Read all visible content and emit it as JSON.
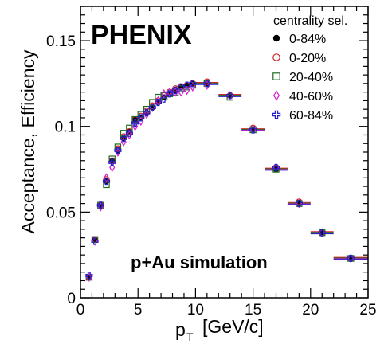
{
  "chart_data": {
    "type": "scatter",
    "title_text": "PHENIX",
    "annotation": "p+Au simulation",
    "xlabel_main": "p",
    "xlabel_sub": "T",
    "xlabel_unit": "[GeV/c]",
    "ylabel": "Acceptance, Efficiency",
    "xlim": [
      0,
      25
    ],
    "ylim": [
      0,
      0.17
    ],
    "x_ticks": [
      0,
      5,
      10,
      15,
      20,
      25
    ],
    "x_tick_labels": [
      "0",
      "5",
      "10",
      "15",
      "20",
      "25"
    ],
    "y_ticks": [
      0,
      0.05,
      0.1,
      0.15
    ],
    "y_tick_labels": [
      "0",
      "0.05",
      "0.1",
      "0.15"
    ],
    "legend_title": "centrality sel.",
    "legend_position": "top-right",
    "grid": false,
    "x": [
      0.75,
      1.25,
      1.75,
      2.25,
      2.75,
      3.25,
      3.75,
      4.25,
      4.75,
      5.25,
      5.75,
      6.25,
      6.75,
      7.25,
      7.75,
      8.25,
      8.75,
      9.25,
      9.75,
      11,
      13,
      15,
      17,
      19,
      21,
      23.5
    ],
    "x_err": [
      0.25,
      0.25,
      0.25,
      0.25,
      0.25,
      0.25,
      0.25,
      0.25,
      0.25,
      0.25,
      0.25,
      0.25,
      0.25,
      0.25,
      0.25,
      0.25,
      0.25,
      0.25,
      0.25,
      1,
      1,
      1,
      1,
      1,
      1,
      1.5
    ],
    "series": [
      {
        "name": "0-84%",
        "marker": "filled-circle",
        "color": "#000000",
        "values": [
          0.012,
          0.034,
          0.054,
          0.068,
          0.08,
          0.086,
          0.093,
          0.097,
          0.104,
          0.105,
          0.108,
          0.111,
          0.114,
          0.117,
          0.119,
          0.121,
          0.123,
          0.124,
          0.125,
          0.125,
          0.118,
          0.098,
          0.075,
          0.055,
          0.038,
          0.023
        ]
      },
      {
        "name": "0-20%",
        "marker": "open-circle",
        "color": "#d62728",
        "values": [
          0.012,
          0.034,
          0.054,
          0.069,
          0.08,
          0.087,
          0.094,
          0.097,
          0.104,
          0.106,
          0.109,
          0.112,
          0.115,
          0.118,
          0.12,
          0.122,
          0.123,
          0.124,
          0.125,
          0.126,
          0.118,
          0.099,
          0.076,
          0.056,
          0.038,
          0.023
        ]
      },
      {
        "name": "20-40%",
        "marker": "open-square",
        "color": "#1f6b1f",
        "values": [
          0.012,
          0.034,
          0.054,
          0.066,
          0.081,
          0.088,
          0.096,
          0.099,
          0.104,
          0.107,
          0.11,
          0.114,
          0.117,
          0.118,
          0.119,
          0.12,
          0.122,
          0.123,
          0.124,
          0.125,
          0.117,
          0.098,
          0.075,
          0.055,
          0.038,
          0.023
        ]
      },
      {
        "name": "40-60%",
        "marker": "open-diamond",
        "color": "#d420d4",
        "values": [
          0.012,
          0.033,
          0.053,
          0.07,
          0.076,
          0.085,
          0.091,
          0.095,
          0.1,
          0.103,
          0.107,
          0.111,
          0.115,
          0.119,
          0.12,
          0.12,
          0.12,
          0.121,
          0.123,
          0.124,
          0.118,
          0.098,
          0.076,
          0.055,
          0.038,
          0.023
        ]
      },
      {
        "name": "60-84%",
        "marker": "open-cross",
        "color": "#2222cc",
        "values": [
          0.013,
          0.033,
          0.054,
          0.068,
          0.079,
          0.086,
          0.093,
          0.096,
          0.102,
          0.105,
          0.108,
          0.111,
          0.114,
          0.116,
          0.119,
          0.121,
          0.123,
          0.124,
          0.125,
          0.125,
          0.118,
          0.098,
          0.076,
          0.055,
          0.038,
          0.023
        ]
      }
    ],
    "error_bar_colors": [
      "#d62728",
      "#1f6b1f",
      "#d420d4",
      "#2222cc"
    ]
  }
}
